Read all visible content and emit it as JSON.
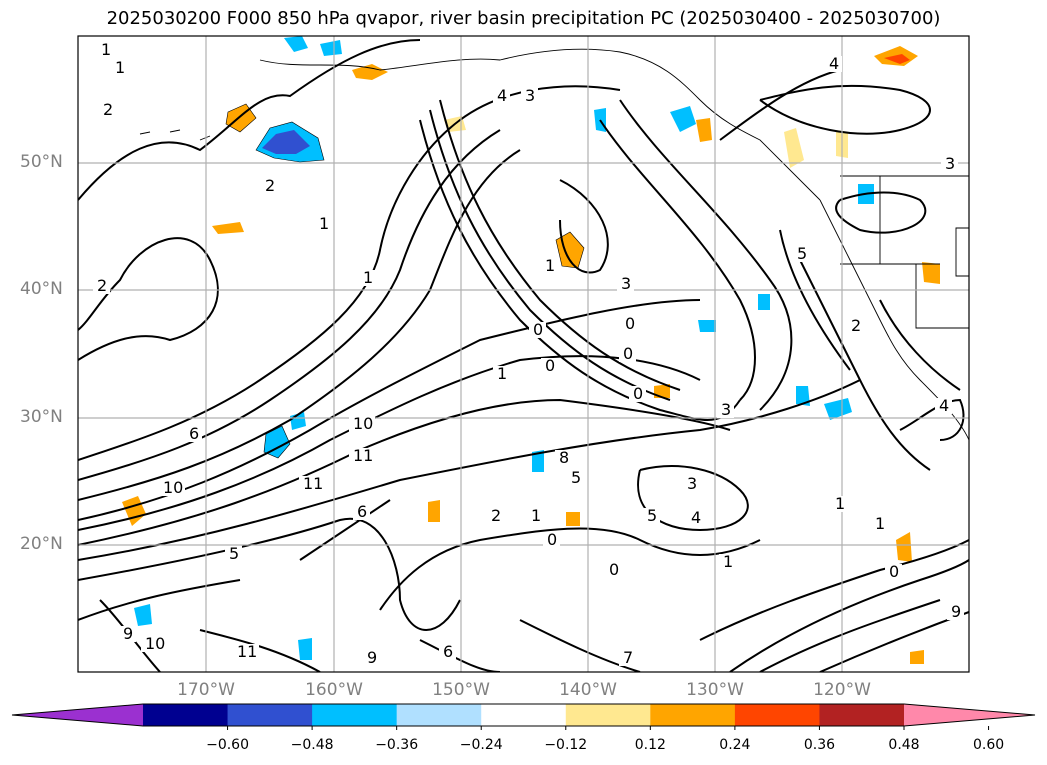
{
  "title": "2025030200 F000 850 hPa qvapor, river basin precipitation PC (2025030400 - 2025030700)",
  "map": {
    "lat_ticks": [
      {
        "label": "50°N"
      },
      {
        "label": "40°N"
      },
      {
        "label": "30°N"
      },
      {
        "label": "20°N"
      }
    ],
    "lon_ticks": [
      {
        "label": "170°W"
      },
      {
        "label": "160°W"
      },
      {
        "label": "150°W"
      },
      {
        "label": "140°W"
      },
      {
        "label": "130°W"
      },
      {
        "label": "120°W"
      }
    ],
    "contour_labels": [
      "1",
      "1",
      "2",
      "2",
      "2",
      "1",
      "1",
      "4",
      "3",
      "4",
      "3",
      "1",
      "3",
      "0",
      "0",
      "0",
      "0",
      "1",
      "3",
      "4",
      "5",
      "2",
      "0",
      "6",
      "10",
      "10",
      "11",
      "11",
      "6",
      "8",
      "5",
      "3",
      "2",
      "1",
      "0",
      "0",
      "5",
      "4",
      "1",
      "1",
      "1",
      "0",
      "9",
      "9",
      "10",
      "11",
      "7",
      "6",
      "9",
      "5"
    ],
    "gridline_color": "#b0b0b0"
  },
  "colorbar": {
    "ticks": [
      "−0.60",
      "−0.48",
      "−0.36",
      "−0.24",
      "−0.12",
      "0.12",
      "0.24",
      "0.36",
      "0.48",
      "0.60"
    ],
    "colors": [
      "#9b30d0",
      "#000090",
      "#3050d0",
      "#00bfff",
      "#b0e0ff",
      "#ffffff",
      "#ffe890",
      "#ffa500",
      "#ff4500",
      "#b22222",
      "#ff88aa"
    ]
  }
}
